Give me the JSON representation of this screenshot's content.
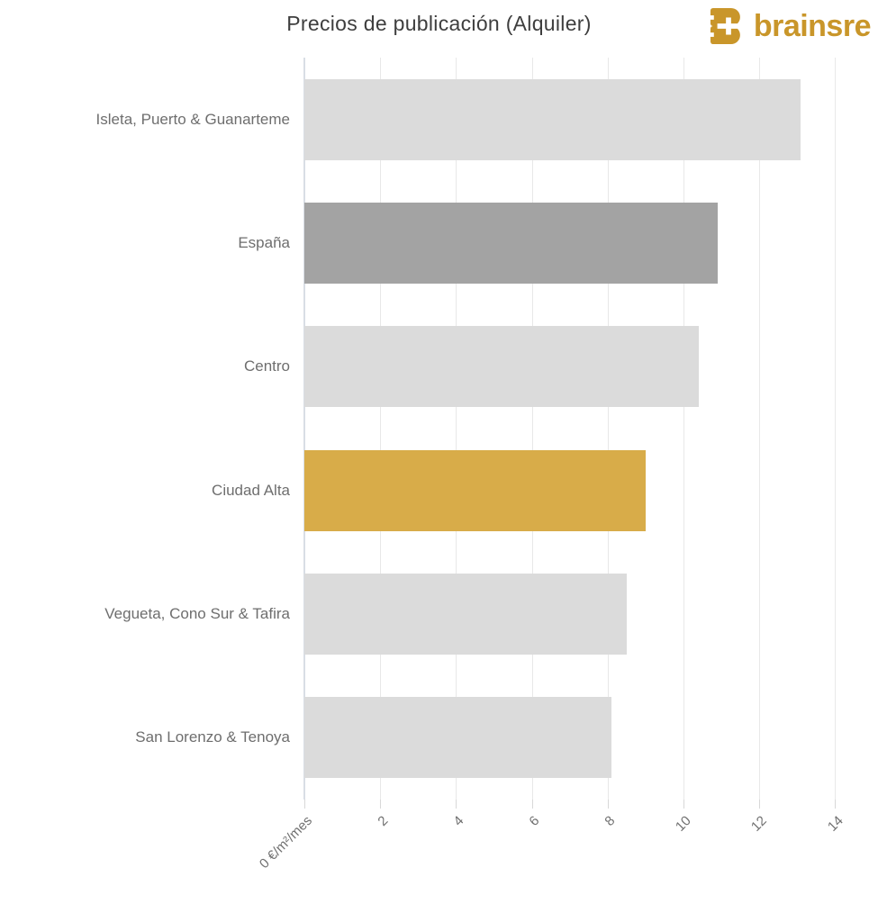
{
  "header": {
    "brand": {
      "name": "brainsre",
      "color": "#c9962a"
    }
  },
  "chart_data": {
    "type": "bar",
    "orientation": "horizontal",
    "title": "Precios de publicación (Alquiler)",
    "categories": [
      "Isleta, Puerto & Guanarteme",
      "España",
      "Centro",
      "Ciudad Alta",
      "Vegueta, Cono Sur & Tafira",
      "San Lorenzo & Tenoya"
    ],
    "values": [
      13.1,
      10.9,
      10.4,
      9.0,
      8.5,
      8.1
    ],
    "unit": "€/m²/mes",
    "bar_colors": [
      "#dbdbdb",
      "#a3a3a3",
      "#dbdbdb",
      "#d8ac49",
      "#dbdbdb",
      "#dbdbdb"
    ],
    "x_ticks": [
      {
        "value": 0,
        "label": "0 €/m²/mes"
      },
      {
        "value": 2,
        "label": "2"
      },
      {
        "value": 4,
        "label": "4"
      },
      {
        "value": 6,
        "label": "6"
      },
      {
        "value": 8,
        "label": "8"
      },
      {
        "value": 10,
        "label": "10"
      },
      {
        "value": 12,
        "label": "12"
      },
      {
        "value": 14,
        "label": "14"
      }
    ],
    "xlim": [
      0,
      14.85
    ],
    "grid": "vertical",
    "legend": "none",
    "colors": {
      "title_text": "#3e3e3e",
      "category_text": "#6e6e6e",
      "tick_text": "#707070",
      "gridline": "#e8e8e8",
      "axis_line": "#d9dee5",
      "bar_default": "#dbdbdb",
      "bar_highlight_gold": "#d8ac49",
      "bar_highlight_gray": "#a3a3a3"
    }
  }
}
